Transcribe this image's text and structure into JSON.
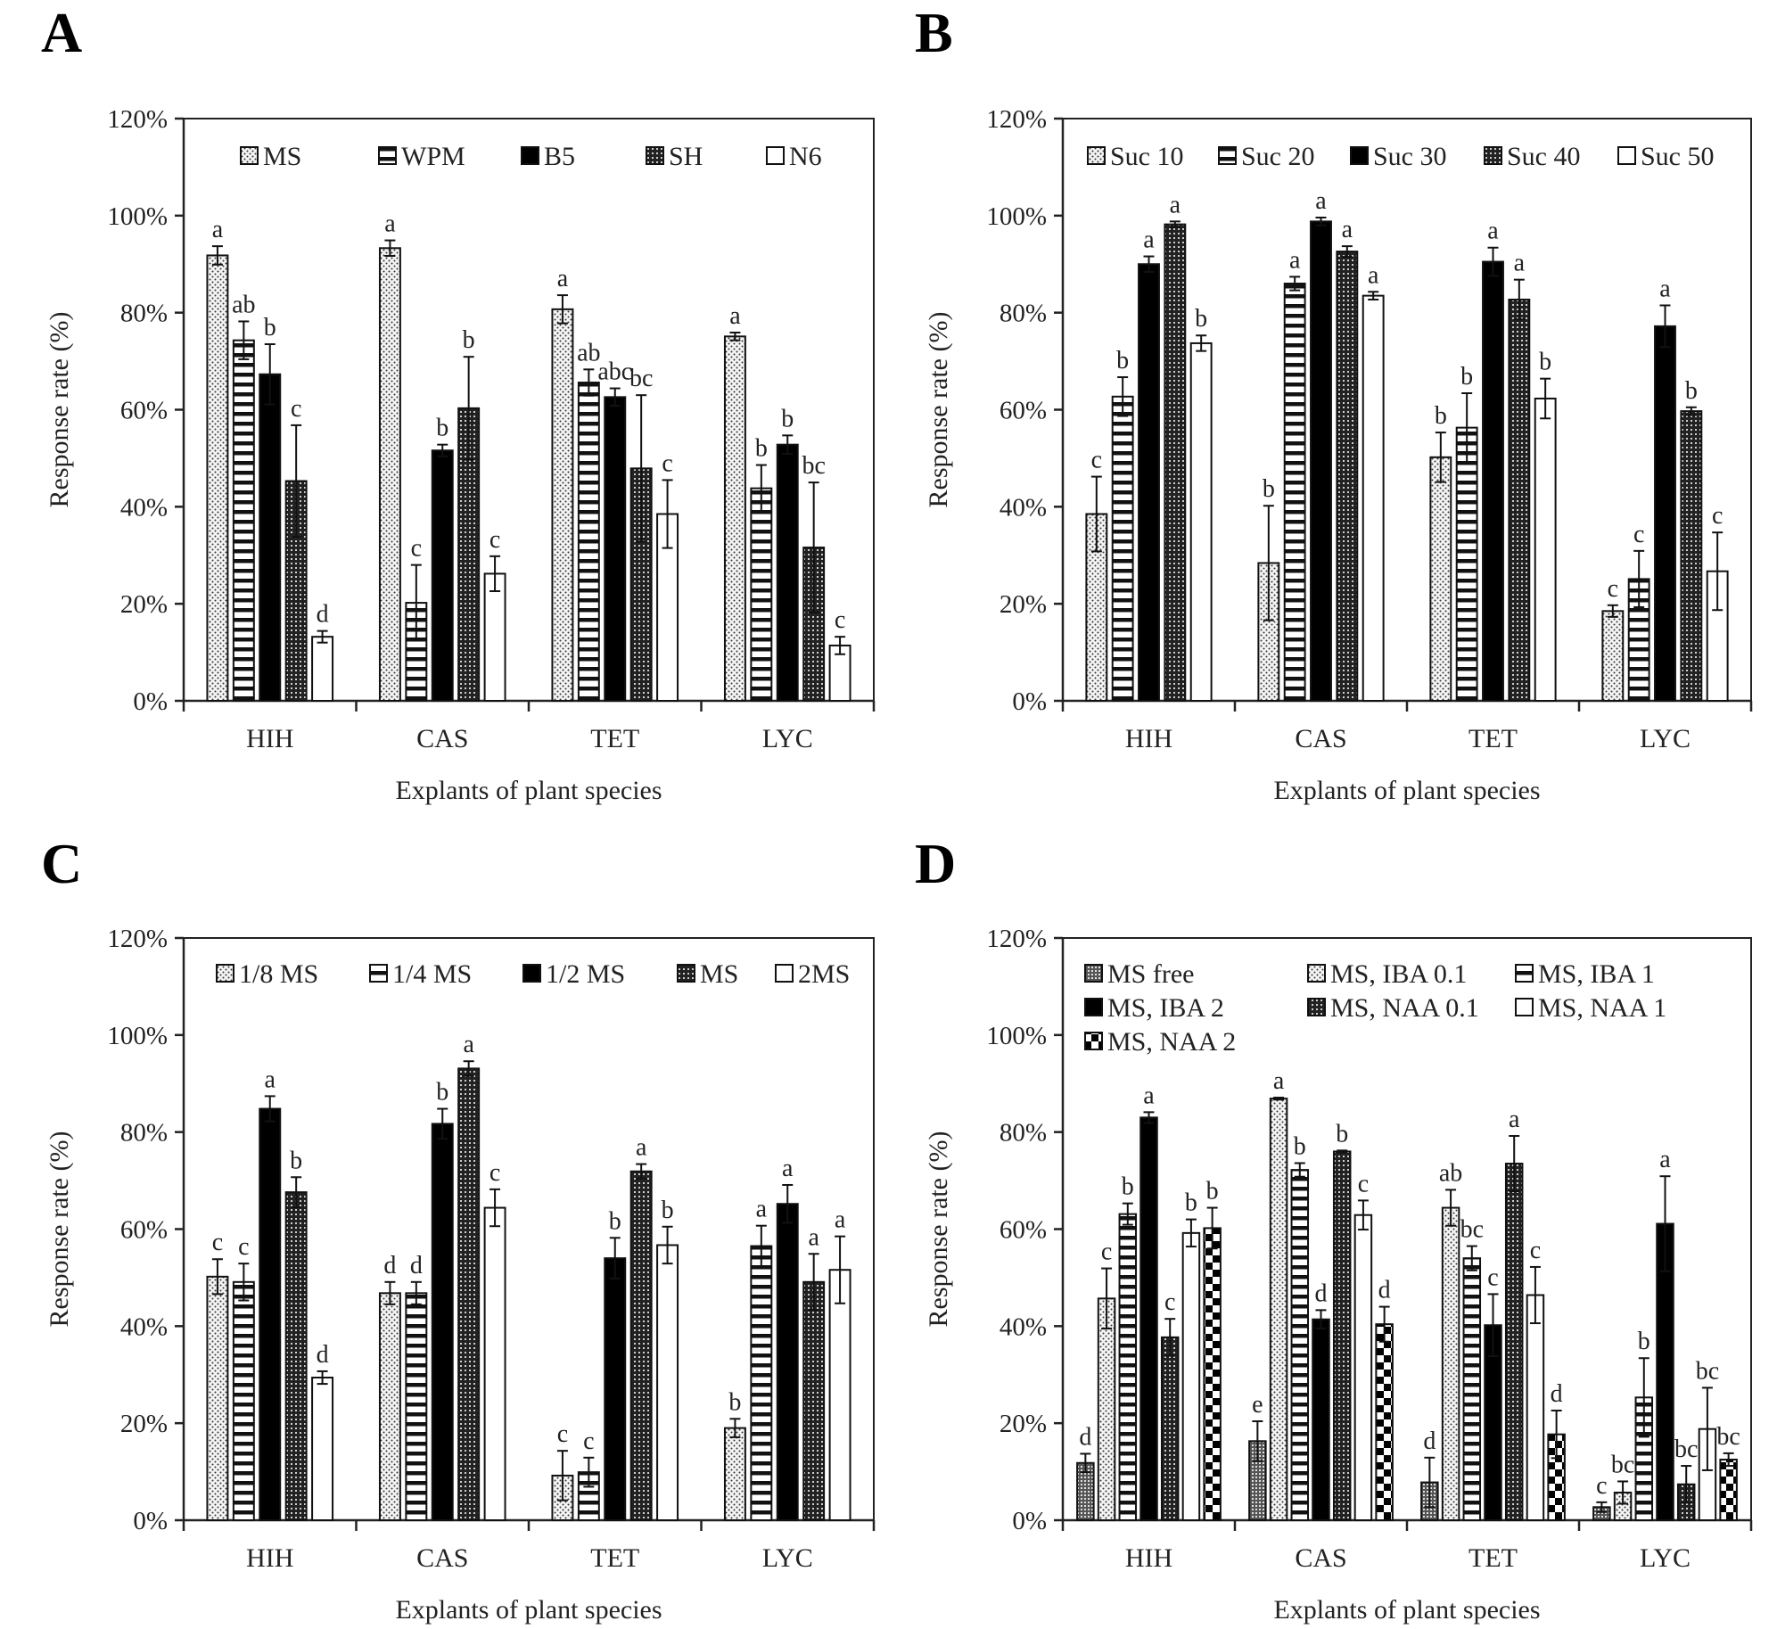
{
  "chart_data": [
    {
      "panel": "A",
      "type": "bar",
      "title": "",
      "xlabel": "Explants of plant species",
      "ylabel": "Response rate (%)",
      "ylim": [
        0,
        120
      ],
      "yticks": [
        "0%",
        "20%",
        "40%",
        "60%",
        "80%",
        "100%",
        "120%"
      ],
      "grid": false,
      "legend_position": "top",
      "legend_rows": 1,
      "categories": [
        "HIH",
        "CAS",
        "TET",
        "LYC"
      ],
      "series": [
        {
          "name": "MS",
          "pattern": "dots",
          "values": [
            91.8,
            93.3,
            80.7,
            75.1
          ],
          "errors": [
            1.9,
            1.6,
            2.9,
            0.8
          ],
          "letters": [
            "a",
            "a",
            "a",
            "a"
          ]
        },
        {
          "name": "WPM",
          "pattern": "hlines",
          "values": [
            74.3,
            20.2,
            65.6,
            43.8
          ],
          "errors": [
            3.9,
            7.8,
            2.7,
            4.8
          ],
          "letters": [
            "ab",
            "c",
            "ab",
            "b"
          ]
        },
        {
          "name": "B5",
          "pattern": "solid",
          "values": [
            67.3,
            51.6,
            62.6,
            52.8
          ],
          "errors": [
            6.2,
            1.2,
            1.8,
            1.9
          ],
          "letters": [
            "b",
            "b",
            "abc",
            "b"
          ]
        },
        {
          "name": "SH",
          "pattern": "grid",
          "values": [
            45.3,
            60.3,
            47.9,
            31.6
          ],
          "errors": [
            11.5,
            10.6,
            15.1,
            13.4
          ],
          "letters": [
            "c",
            "b",
            "bc",
            "bc"
          ]
        },
        {
          "name": "N6",
          "pattern": "white",
          "values": [
            13.2,
            26.2,
            38.5,
            11.4
          ],
          "errors": [
            1.2,
            3.6,
            7.0,
            1.8
          ],
          "letters": [
            "d",
            "c",
            "c",
            "c"
          ]
        }
      ]
    },
    {
      "panel": "B",
      "type": "bar",
      "title": "",
      "xlabel": "Explants of plant species",
      "ylabel": "Response rate (%)",
      "ylim": [
        0,
        120
      ],
      "yticks": [
        "0%",
        "20%",
        "40%",
        "60%",
        "80%",
        "100%",
        "120%"
      ],
      "grid": false,
      "legend_position": "top",
      "legend_rows": 1,
      "categories": [
        "HIH",
        "CAS",
        "TET",
        "LYC"
      ],
      "series": [
        {
          "name": "Suc 10",
          "pattern": "dots",
          "values": [
            38.5,
            28.4,
            50.2,
            18.5
          ],
          "errors": [
            7.7,
            11.8,
            5.1,
            1.2
          ],
          "letters": [
            "c",
            "b",
            "b",
            "c"
          ]
        },
        {
          "name": "Suc 20",
          "pattern": "hlines",
          "values": [
            62.7,
            86.0,
            56.3,
            25.1
          ],
          "errors": [
            4.0,
            1.4,
            7.1,
            5.8
          ],
          "letters": [
            "b",
            "a",
            "b",
            "c"
          ]
        },
        {
          "name": "Suc 30",
          "pattern": "solid",
          "values": [
            90.0,
            98.8,
            90.5,
            77.2
          ],
          "errors": [
            1.6,
            0.8,
            2.9,
            4.3
          ],
          "letters": [
            "a",
            "a",
            "a",
            "a"
          ]
        },
        {
          "name": "Suc 40",
          "pattern": "grid",
          "values": [
            98.2,
            92.6,
            82.7,
            59.7
          ],
          "errors": [
            0.6,
            1.1,
            4.1,
            0.8
          ],
          "letters": [
            "a",
            "a",
            "a",
            "b"
          ]
        },
        {
          "name": "Suc 50",
          "pattern": "white",
          "values": [
            73.7,
            83.5,
            62.3,
            26.7
          ],
          "errors": [
            1.6,
            0.8,
            4.1,
            8.0
          ],
          "letters": [
            "b",
            "a",
            "b",
            "c"
          ]
        }
      ]
    },
    {
      "panel": "C",
      "type": "bar",
      "title": "",
      "xlabel": "Explants of plant species",
      "ylabel": "Response rate (%)",
      "ylim": [
        0,
        120
      ],
      "yticks": [
        "0%",
        "20%",
        "40%",
        "60%",
        "80%",
        "100%",
        "120%"
      ],
      "grid": false,
      "legend_position": "top",
      "legend_rows": 1,
      "categories": [
        "HIH",
        "CAS",
        "TET",
        "LYC"
      ],
      "series": [
        {
          "name": "1/8 MS",
          "pattern": "dots",
          "values": [
            50.2,
            46.8,
            9.2,
            19.0
          ],
          "errors": [
            3.6,
            2.3,
            5.1,
            1.9
          ],
          "letters": [
            "c",
            "d",
            "c",
            "b"
          ]
        },
        {
          "name": "1/4 MS",
          "pattern": "hlines",
          "values": [
            49.1,
            46.8,
            9.9,
            56.5
          ],
          "errors": [
            3.8,
            2.3,
            3.0,
            4.2
          ],
          "letters": [
            "c",
            "d",
            "c",
            "a"
          ]
        },
        {
          "name": "1/2 MS",
          "pattern": "solid",
          "values": [
            84.8,
            81.7,
            54.0,
            65.2
          ],
          "errors": [
            2.6,
            3.1,
            4.2,
            3.9
          ],
          "letters": [
            "a",
            "b",
            "b",
            "a"
          ]
        },
        {
          "name": "MS",
          "pattern": "grid",
          "values": [
            67.6,
            93.1,
            71.9,
            49.1
          ],
          "errors": [
            3.1,
            1.5,
            1.5,
            5.8
          ],
          "letters": [
            "b",
            "a",
            "a",
            "a"
          ]
        },
        {
          "name": "2MS",
          "pattern": "white",
          "values": [
            29.4,
            64.4,
            56.7,
            51.6
          ],
          "errors": [
            1.3,
            3.8,
            3.8,
            6.9
          ],
          "letters": [
            "d",
            "c",
            "b",
            "a"
          ]
        }
      ]
    },
    {
      "panel": "D",
      "type": "bar",
      "title": "",
      "xlabel": "Explants of plant species",
      "ylabel": "Response rate (%)",
      "ylim": [
        0,
        120
      ],
      "yticks": [
        "0%",
        "20%",
        "40%",
        "60%",
        "80%",
        "100%",
        "120%"
      ],
      "grid": false,
      "legend_position": "top-left",
      "legend_rows": 3,
      "categories": [
        "HIH",
        "CAS",
        "TET",
        "LYC"
      ],
      "series": [
        {
          "name": "MS free",
          "pattern": "densegrid",
          "values": [
            11.8,
            16.3,
            7.8,
            2.7
          ],
          "errors": [
            1.9,
            4.1,
            5.1,
            1.0
          ],
          "letters": [
            "d",
            "e",
            "d",
            "c"
          ]
        },
        {
          "name": "MS, IBA 0.1",
          "pattern": "dots",
          "values": [
            45.7,
            86.9,
            64.4,
            5.7
          ],
          "errors": [
            6.2,
            0.2,
            3.7,
            2.3
          ],
          "letters": [
            "c",
            "a",
            "ab",
            "bc"
          ]
        },
        {
          "name": "MS, IBA 1",
          "pattern": "hlines",
          "values": [
            63.1,
            72.2,
            54.0,
            25.3
          ],
          "errors": [
            2.2,
            1.4,
            2.5,
            8.1
          ],
          "letters": [
            "b",
            "b",
            "bc",
            "b"
          ]
        },
        {
          "name": "MS, IBA 2",
          "pattern": "solid",
          "values": [
            83.0,
            41.4,
            40.2,
            61.1
          ],
          "errors": [
            1.1,
            1.9,
            6.4,
            9.8
          ],
          "letters": [
            "a",
            "d",
            "c",
            "a"
          ]
        },
        {
          "name": "MS, NAA 0.1",
          "pattern": "grid",
          "values": [
            37.7,
            76.0,
            73.5,
            7.4
          ],
          "errors": [
            3.8,
            0.2,
            5.7,
            3.8
          ],
          "letters": [
            "c",
            "b",
            "a",
            "bc"
          ]
        },
        {
          "name": "MS, NAA 1",
          "pattern": "white",
          "values": [
            59.2,
            62.9,
            46.4,
            18.8
          ],
          "errors": [
            2.8,
            3.0,
            5.8,
            8.5
          ],
          "letters": [
            "b",
            "c",
            "c",
            "bc"
          ]
        },
        {
          "name": "MS, NAA 2",
          "pattern": "checker",
          "values": [
            60.2,
            40.4,
            17.7,
            12.5
          ],
          "errors": [
            4.2,
            3.6,
            4.9,
            1.3
          ],
          "letters": [
            "b",
            "d",
            "d",
            "bc"
          ]
        }
      ]
    }
  ]
}
